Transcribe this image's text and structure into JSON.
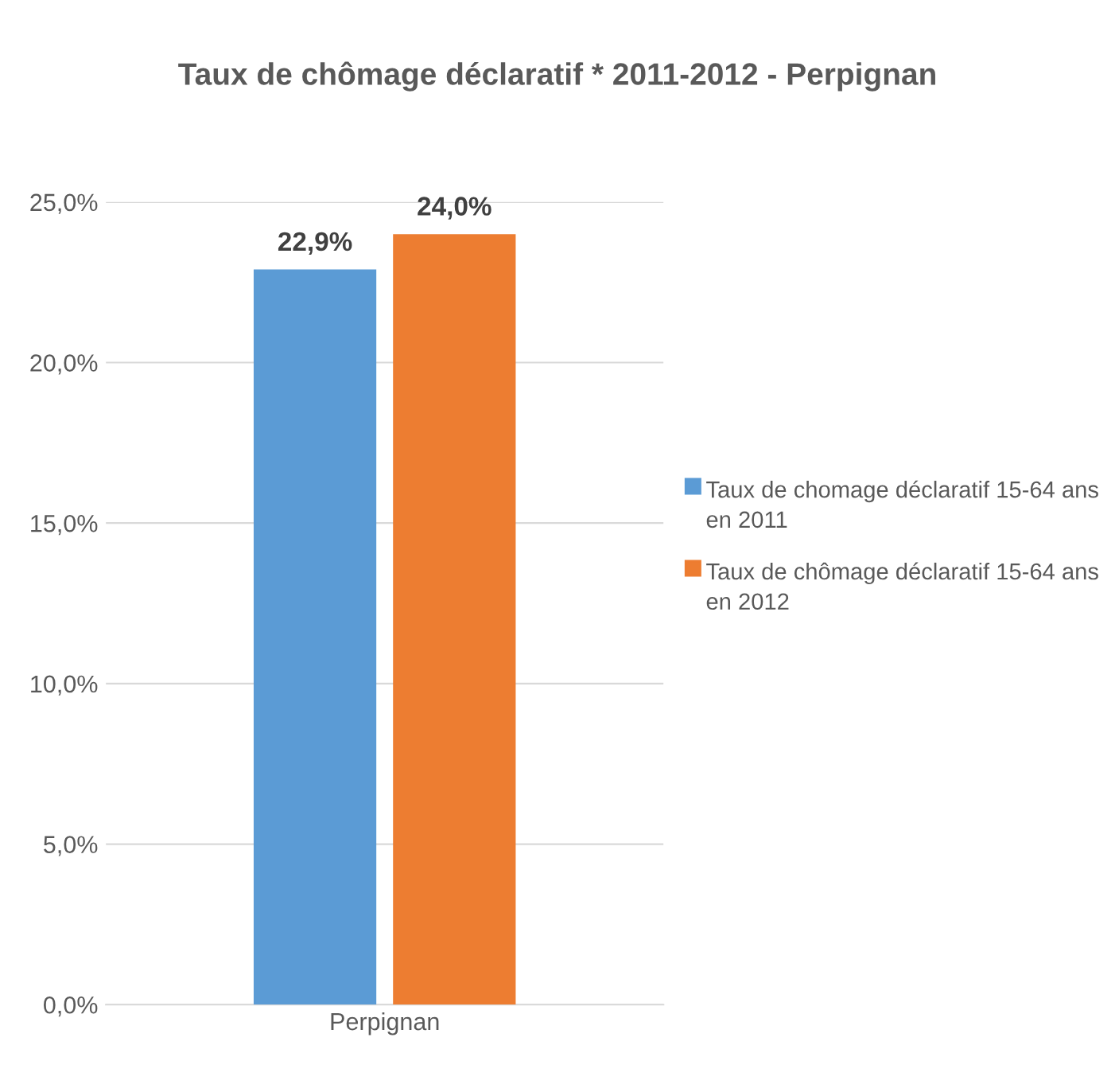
{
  "chart_data": {
    "type": "bar",
    "title": "Taux de chômage déclaratif * 2011-2012 - Perpignan",
    "categories": [
      "Perpignan"
    ],
    "series": [
      {
        "name": "Taux de chomage déclaratif 15-64 ans en 2011",
        "color": "#5b9bd5",
        "values": [
          22.9
        ],
        "value_labels": [
          "22,9%"
        ]
      },
      {
        "name": "Taux de chômage déclaratif 15-64 ans en 2012",
        "color": "#ed7d31",
        "values": [
          24.0
        ],
        "value_labels": [
          "24,0%"
        ]
      }
    ],
    "ylim": [
      0,
      25
    ],
    "yticks": [
      {
        "value": 0,
        "label": "0,0%"
      },
      {
        "value": 5,
        "label": "5,0%"
      },
      {
        "value": 10,
        "label": "10,0%"
      },
      {
        "value": 15,
        "label": "15,0%"
      },
      {
        "value": 20,
        "label": "20,0%"
      },
      {
        "value": 25,
        "label": "25,0%"
      }
    ],
    "grid": "y",
    "legend": "right"
  }
}
